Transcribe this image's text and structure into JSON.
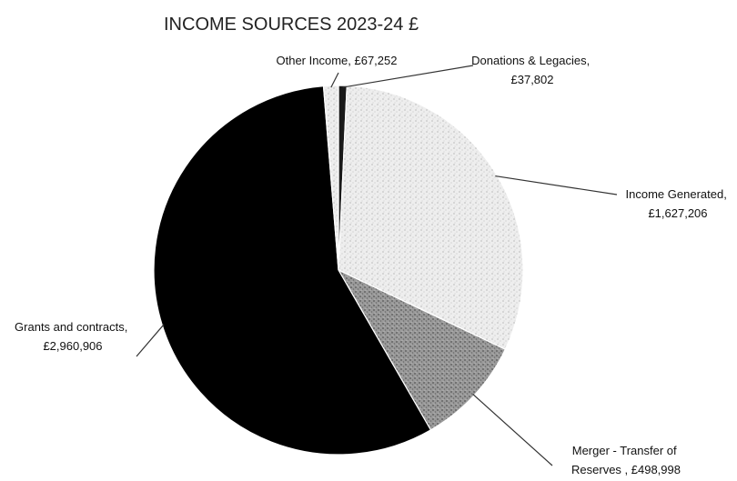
{
  "chart_data": {
    "type": "pie",
    "title": "INCOME SOURCES 2023-24 £",
    "currency": "£",
    "slices": [
      {
        "name": "Donations & Legacies",
        "value": 37802,
        "label_lines": [
          "Donations & Legacies,",
          "£37,802"
        ],
        "color": "#1a1a1a",
        "pattern": "solid"
      },
      {
        "name": "Income Generated",
        "value": 1627206,
        "label_lines": [
          "Income Generated,",
          "£1,627,206"
        ],
        "color": "#e2e2e2",
        "pattern": "stipple-light"
      },
      {
        "name": "Merger - Transfer of Reserves",
        "value": 498998,
        "label_lines": [
          "Merger - Transfer of",
          "Reserves , £498,998"
        ],
        "color": "#8e8e8e",
        "pattern": "stipple-dark"
      },
      {
        "name": "Grants and contracts",
        "value": 2960906,
        "label_lines": [
          "Grants and contracts,",
          "£2,960,906"
        ],
        "color": "#000000",
        "pattern": "solid"
      },
      {
        "name": "Other Income",
        "value": 67252,
        "label_lines": [
          "Other Income, £67,252"
        ],
        "color": "#d9d9d9",
        "pattern": "stipple-light"
      }
    ],
    "start_angle_deg": 0,
    "direction": "clockwise",
    "legend": "none"
  }
}
